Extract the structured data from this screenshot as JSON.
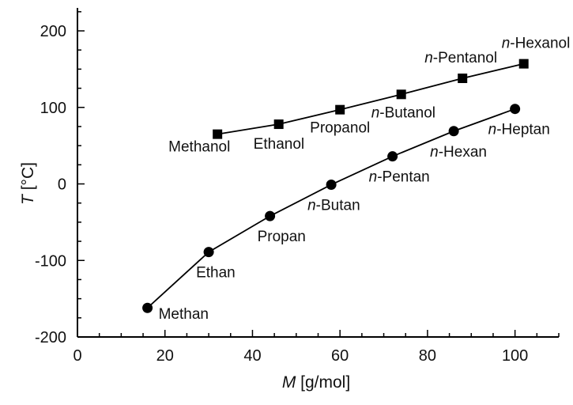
{
  "chart_data": {
    "type": "line",
    "xlabel_italic": "M",
    "xlabel_rest": " [g/mol]",
    "ylabel_italic": "T",
    "ylabel_rest": " [°C]",
    "xlim": [
      0,
      110
    ],
    "ylim": [
      -200,
      230
    ],
    "xticks": [
      0,
      20,
      40,
      60,
      80,
      100
    ],
    "yticks": [
      -200,
      -100,
      0,
      100,
      200
    ],
    "grid": false,
    "series": [
      {
        "marker": "square",
        "x": [
          32,
          46,
          60,
          74,
          88,
          102
        ],
        "y": [
          65,
          78,
          97,
          117,
          138,
          157
        ],
        "labels": [
          {
            "prefix": "",
            "text": "Methanol"
          },
          {
            "prefix": "",
            "text": "Ethanol"
          },
          {
            "prefix": "",
            "text": "Propanol"
          },
          {
            "prefix": "n",
            "text": "-Butanol"
          },
          {
            "prefix": "n",
            "text": "-Pentanol"
          },
          {
            "prefix": "n",
            "text": "-Hexanol"
          }
        ]
      },
      {
        "marker": "circle",
        "x": [
          16,
          30,
          44,
          58,
          72,
          86,
          100
        ],
        "y": [
          -162,
          -89,
          -42,
          -1,
          36,
          69,
          98
        ],
        "labels": [
          {
            "prefix": "",
            "text": "Methan"
          },
          {
            "prefix": "",
            "text": "Ethan"
          },
          {
            "prefix": "",
            "text": "Propan"
          },
          {
            "prefix": "n",
            "text": "-Butan"
          },
          {
            "prefix": "n",
            "text": "-Pentan"
          },
          {
            "prefix": "n",
            "text": "-Hexan"
          },
          {
            "prefix": "n",
            "text": "-Heptan"
          }
        ]
      }
    ]
  }
}
